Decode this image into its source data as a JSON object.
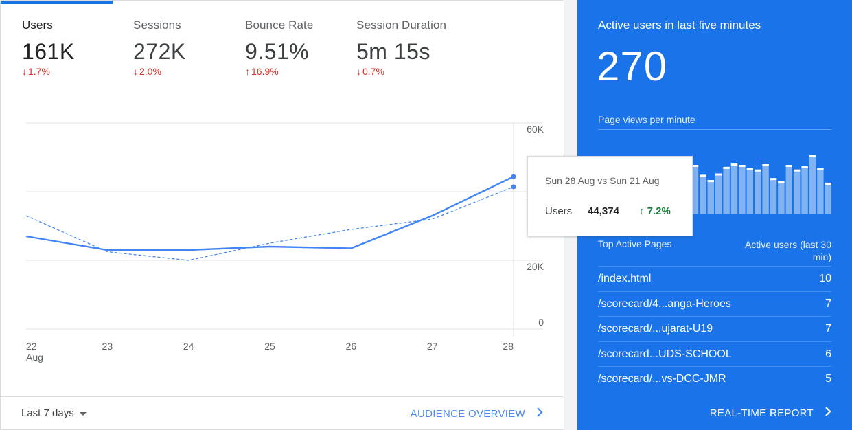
{
  "metrics": [
    {
      "name": "Users",
      "value": "161K",
      "change": "1.7%",
      "direction": "down"
    },
    {
      "name": "Sessions",
      "value": "272K",
      "change": "2.0%",
      "direction": "down"
    },
    {
      "name": "Bounce Rate",
      "value": "9.51%",
      "change": "16.9%",
      "direction": "up"
    },
    {
      "name": "Session Duration",
      "value": "5m 15s",
      "change": "0.7%",
      "direction": "down"
    }
  ],
  "chart_data": {
    "type": "line",
    "x": [
      "22",
      "23",
      "24",
      "25",
      "26",
      "27",
      "28"
    ],
    "x_sublabel": "Aug",
    "y_ticks": [
      "60K",
      "40K",
      "20K",
      "0"
    ],
    "ylim": [
      0,
      60000
    ],
    "series": [
      {
        "style": "solid",
        "values": [
          27000,
          23000,
          23000,
          24000,
          23500,
          33000,
          44374
        ]
      },
      {
        "style": "dashed",
        "values": [
          33000,
          22500,
          20000,
          25000,
          29000,
          32000,
          41400
        ]
      }
    ],
    "grid": true,
    "colors": {
      "line": "#4285f4",
      "grid": "#e0e0e0",
      "tick": "#5f6368"
    }
  },
  "tooltip": {
    "title": "Sun 28 Aug vs Sun 21 Aug",
    "label": "Users",
    "value": "44,374",
    "change": "7.2%",
    "change_arrow": "🠑"
  },
  "footer": {
    "range_label": "Last 7 days",
    "audience_link": "AUDIENCE OVERVIEW"
  },
  "realtime": {
    "title": "Active users in last five minutes",
    "count": "270",
    "pageviews_label": "Page views per minute",
    "minibar_values": [
      0.35,
      0.4,
      0.3,
      0.45,
      0.5,
      0.55,
      0.48,
      0.42,
      0.38,
      0.6,
      0.72,
      0.78,
      0.75,
      0.6,
      0.52,
      0.62,
      0.72,
      0.77,
      0.75,
      0.7,
      0.68,
      0.76,
      0.55,
      0.5,
      0.75,
      0.68,
      0.73,
      0.9,
      0.7,
      0.48
    ],
    "pages_header_left": "Top Active Pages",
    "pages_header_right": "Active users (last 30 min)",
    "pages": [
      {
        "path": "/index.html",
        "count": "10"
      },
      {
        "path": "/scorecard/4...anga-Heroes",
        "count": "7"
      },
      {
        "path": "/scorecard/...ujarat-U19",
        "count": "7"
      },
      {
        "path": "/scorecard...UDS-SCHOOL",
        "count": "6"
      },
      {
        "path": "/scorecard/...vs-DCC-JMR",
        "count": "5"
      }
    ],
    "report_link": "REAL-TIME REPORT"
  },
  "colors": {
    "accent": "#1a73e8",
    "negative": "#d93025",
    "positive": "#188038"
  }
}
